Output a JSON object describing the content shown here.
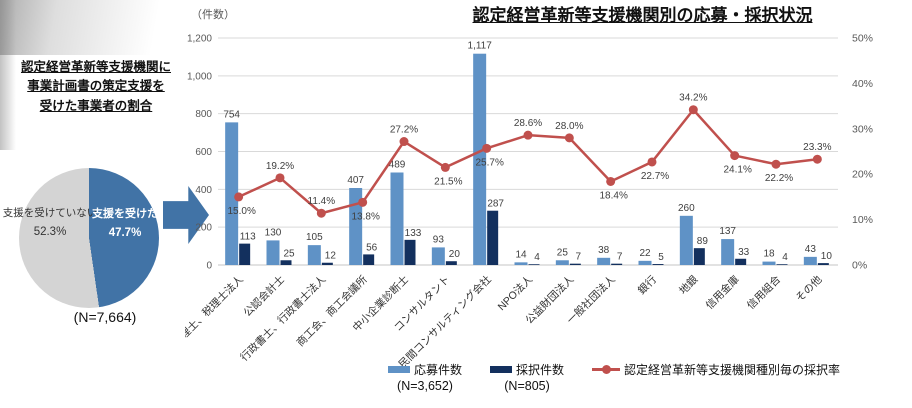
{
  "left_panel": {
    "title_lines": [
      "認定経営革新等支援機関に",
      "事業計画書の策定支援を",
      "受けた事業者の割合"
    ]
  },
  "main_chart": {
    "title": "認定経営革新等支援機関別の応募・採択状況",
    "y_left_unit": "（件数）",
    "legend": [
      {
        "label": "応募件数",
        "sub": "(N=3,652)",
        "type": "bar",
        "color": "#5f92c6"
      },
      {
        "label": "採択件数",
        "sub": "(N=805)",
        "type": "bar",
        "color": "#13305e"
      },
      {
        "label": "認定経営革新等支援機関種別毎の採択率",
        "sub": "",
        "type": "line",
        "color": "#c0504d"
      }
    ]
  },
  "colors": {
    "bar_applications": "#5f92c6",
    "bar_adopted": "#13305e",
    "rate_line": "#c0504d",
    "pie_blue": "#4173a6",
    "pie_gray": "#d4d4d4",
    "arrow_blue": "#4173a6",
    "gridline": "#d9d9d9",
    "axis_text": "#595959",
    "label_text": "#404040"
  },
  "chart_data": [
    {
      "type": "pie",
      "title": "認定経営革新等支援機関に事業計画書の策定支援を受けた事業者の割合",
      "n": "(N=7,664)",
      "slices": [
        {
          "label": "支援を受けた",
          "value": 47.7,
          "color": "#4173a6"
        },
        {
          "label": "支援を受けていない",
          "value": 52.3,
          "color": "#d4d4d4"
        }
      ]
    },
    {
      "type": "bar+line",
      "title": "認定経営革新等支援機関別の応募・採択状況",
      "categories": [
        "税理士、税理士法人",
        "公認会計士",
        "行政書士、行政書士法人",
        "商工会、商工会議所",
        "中小企業診断士",
        "コンサルタント",
        "民間コンサルティング会社",
        "NPO法人",
        "公益財団法人",
        "一般社団法人",
        "銀行",
        "地銀",
        "信用金庫",
        "信用組合",
        "その他"
      ],
      "series": [
        {
          "name": "応募件数",
          "n": "(N=3,652)",
          "values": [
            754,
            130,
            105,
            407,
            489,
            93,
            1117,
            14,
            25,
            38,
            22,
            260,
            137,
            18,
            43
          ]
        },
        {
          "name": "採択件数",
          "n": "(N=805)",
          "values": [
            113,
            25,
            12,
            56,
            133,
            20,
            287,
            4,
            7,
            7,
            5,
            89,
            33,
            4,
            10
          ]
        }
      ],
      "line": {
        "name": "認定経営革新等支援機関種別毎の採択率",
        "values": [
          15.0,
          19.2,
          11.4,
          13.8,
          27.2,
          21.5,
          25.7,
          28.6,
          28.0,
          18.4,
          22.7,
          34.2,
          24.1,
          22.2,
          23.3
        ],
        "label_pos": [
          "below",
          "above",
          "above",
          "below",
          "above",
          "below",
          "below",
          "above",
          "above",
          "below",
          "below",
          "above",
          "below",
          "below",
          "above"
        ]
      },
      "y_left": {
        "min": 0,
        "max": 1200,
        "step": 200,
        "unit": "（件数）"
      },
      "y_right": {
        "min": 0,
        "max": 50,
        "step": 10,
        "suffix": "%"
      }
    }
  ]
}
